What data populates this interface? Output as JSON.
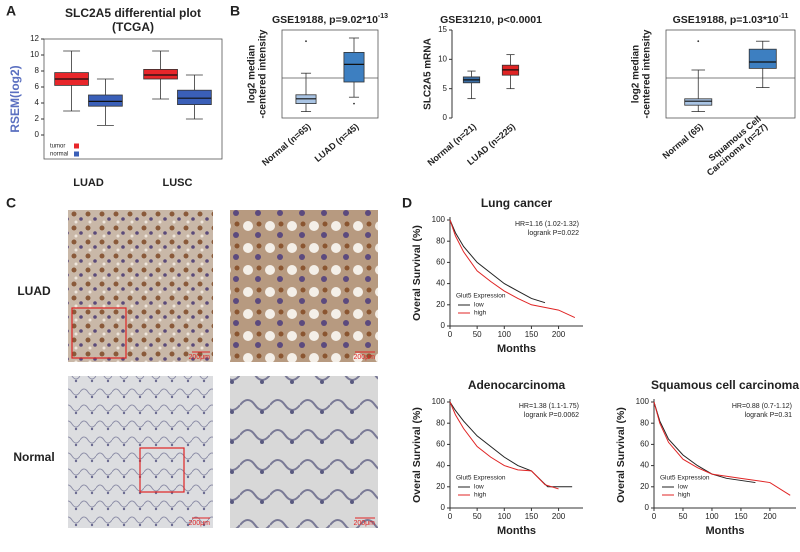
{
  "panel_labels": [
    "A",
    "B",
    "C",
    "D"
  ],
  "chart_data": [
    {
      "type": "box",
      "title": "SLC2A5  differential plot",
      "subtitle": "(TCGA)",
      "y_label": [
        "RSEM(log2)"
      ],
      "categories": [
        [
          "LUAD"
        ],
        [
          "LUSC"
        ]
      ],
      "ylim": [
        -3,
        12
      ],
      "yticks": [
        0,
        2,
        4,
        6,
        8,
        10,
        12
      ],
      "series": [
        {
          "name": "tumor",
          "color": "#e8262a",
          "boxes": [
            {
              "min": 3,
              "q1": 6.2,
              "median": 7,
              "q3": 7.8,
              "max": 10.5
            },
            {
              "min": 4.5,
              "q1": 7,
              "median": 7.5,
              "q3": 8.2,
              "max": 10.5
            }
          ]
        },
        {
          "name": "normal",
          "color": "#3a5fb8",
          "boxes": [
            {
              "min": 1.2,
              "q1": 3.6,
              "median": 4.2,
              "q3": 5,
              "max": 7
            },
            {
              "min": 2,
              "q1": 3.8,
              "median": 4.6,
              "q3": 5.6,
              "max": 7.5
            }
          ]
        }
      ]
    },
    {
      "type": "box",
      "title": "GSE19188, p=9.02*10",
      "title_exponent": "-13",
      "y_label": [
        "log2 median",
        "-centered intensity"
      ],
      "categories": [
        [
          "Normal (n=65)"
        ],
        [
          "LUAD (n=45)"
        ]
      ],
      "ylim": [
        -2.5,
        3
      ],
      "reference_line": 0,
      "boxes": [
        {
          "min": -2.1,
          "q1": -1.6,
          "median": -1.3,
          "q3": -1.05,
          "max": 0.3,
          "outliers": [
            2.3
          ],
          "color": "#a9c4e4"
        },
        {
          "min": -1.2,
          "q1": -0.25,
          "median": 0.85,
          "q3": 1.6,
          "max": 2.5,
          "outliers": [
            -1.6
          ],
          "color": "#3d7fc1"
        }
      ]
    },
    {
      "type": "box",
      "title": "GSE31210, p<0.0001",
      "y_label": [
        "SLC2A5 mRNA"
      ],
      "categories": [
        [
          "Normal (n=21)"
        ],
        [
          "LUAD (n=225)"
        ]
      ],
      "ylim": [
        0,
        15
      ],
      "yticks": [
        0,
        5,
        10,
        15
      ],
      "boxes": [
        {
          "min": 3.3,
          "q1": 6,
          "median": 6.5,
          "q3": 7,
          "max": 8,
          "color": "#3a6ea5"
        },
        {
          "min": 5,
          "q1": 7.3,
          "median": 8.2,
          "q3": 9,
          "max": 10.8,
          "color": "#e02424"
        }
      ]
    },
    {
      "type": "box",
      "title": "GSE19188, p=1.03*10",
      "title_exponent": "-11",
      "y_label": [
        "log2 median",
        "-centered intensity"
      ],
      "categories": [
        [
          "Normal (65)"
        ],
        [
          "Squamous Cell",
          "Carcinoma (n=27)"
        ]
      ],
      "ylim": [
        -2.5,
        3
      ],
      "reference_line": 0,
      "boxes": [
        {
          "min": -2.1,
          "q1": -1.7,
          "median": -1.45,
          "q3": -1.3,
          "max": 0.5,
          "outliers": [
            2.3
          ],
          "color": "#a9c4e4"
        },
        {
          "min": -0.6,
          "q1": 0.6,
          "median": 1.0,
          "q3": 1.8,
          "max": 2.3,
          "color": "#3d7fc1"
        }
      ]
    },
    {
      "type": "line",
      "title": "Lung cancer",
      "annotations": [
        "HR=1.16 (1.02-1.32)",
        "logrank P=0.022"
      ],
      "x_label": "Months",
      "y_label": "Overal Survival (%)",
      "legend_title": "Glut5 Expression",
      "xlim": [
        0,
        245
      ],
      "xticks": [
        0,
        50,
        100,
        150,
        200
      ],
      "ylim": [
        0,
        100
      ],
      "yticks": [
        0,
        20,
        40,
        60,
        80,
        100
      ],
      "series": [
        {
          "name": "low",
          "color": "#222222",
          "x": [
            0,
            10,
            25,
            50,
            75,
            100,
            125,
            150,
            175
          ],
          "values": [
            100,
            88,
            75,
            60,
            50,
            40,
            33,
            26,
            22
          ]
        },
        {
          "name": "high",
          "color": "#e02424",
          "x": [
            0,
            10,
            25,
            50,
            75,
            100,
            125,
            150,
            200,
            230
          ],
          "values": [
            100,
            85,
            70,
            52,
            42,
            33,
            26,
            20,
            15,
            8
          ]
        }
      ]
    },
    {
      "type": "line",
      "title": "Adenocarcinoma",
      "annotations": [
        "HR=1.38 (1.1-1.75)",
        "logrank P=0.0062"
      ],
      "x_label": "Months",
      "y_label": "Overal Survival (%)",
      "legend_title": "Glut5 Expression",
      "xlim": [
        0,
        245
      ],
      "xticks": [
        0,
        50,
        100,
        150,
        200
      ],
      "ylim": [
        0,
        100
      ],
      "yticks": [
        0,
        20,
        40,
        60,
        80,
        100
      ],
      "series": [
        {
          "name": "low",
          "color": "#222222",
          "x": [
            0,
            10,
            25,
            50,
            75,
            100,
            125,
            150,
            180,
            225
          ],
          "values": [
            100,
            92,
            82,
            68,
            58,
            48,
            40,
            35,
            20,
            20
          ]
        },
        {
          "name": "high",
          "color": "#e02424",
          "x": [
            0,
            10,
            25,
            50,
            75,
            100,
            125,
            150,
            175,
            200
          ],
          "values": [
            100,
            88,
            75,
            58,
            48,
            40,
            36,
            35,
            22,
            18
          ]
        }
      ]
    },
    {
      "type": "line",
      "title": "Squamous cell carcinoma",
      "annotations": [
        "HR=0.88 (0.7-1.12)",
        "logrank P=0.31"
      ],
      "x_label": "Months",
      "y_label": "Overal Survival (%)",
      "legend_title": "Glut5 Expression",
      "xlim": [
        0,
        245
      ],
      "xticks": [
        0,
        50,
        100,
        150,
        200
      ],
      "ylim": [
        0,
        100
      ],
      "yticks": [
        0,
        20,
        40,
        60,
        80,
        100
      ],
      "series": [
        {
          "name": "low",
          "color": "#222222",
          "x": [
            0,
            10,
            25,
            50,
            75,
            100,
            125,
            150,
            175
          ],
          "values": [
            100,
            82,
            65,
            50,
            40,
            32,
            28,
            26,
            24
          ]
        },
        {
          "name": "high",
          "color": "#e02424",
          "x": [
            0,
            10,
            25,
            50,
            75,
            100,
            125,
            150,
            200,
            235
          ],
          "values": [
            100,
            80,
            62,
            46,
            38,
            32,
            30,
            28,
            24,
            12
          ]
        }
      ]
    }
  ],
  "ihc": {
    "row_labels": [
      "LUAD",
      "Normal"
    ],
    "scale_bars": [
      "200μm",
      "200μm",
      "200μm",
      "200μm"
    ]
  }
}
